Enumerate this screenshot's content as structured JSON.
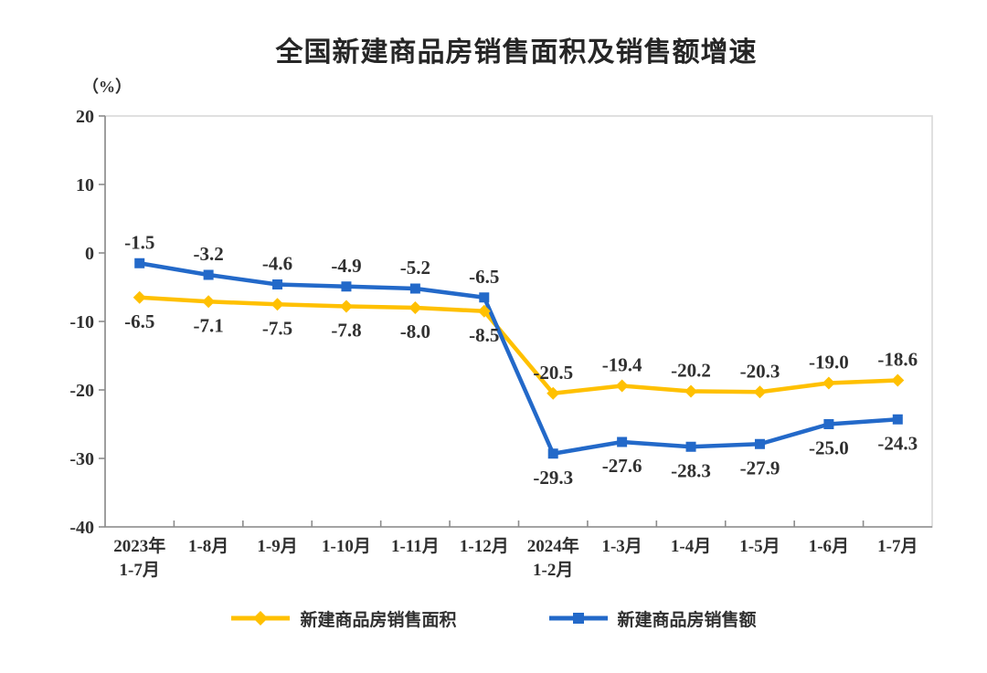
{
  "chart_data": {
    "type": "line",
    "title": "全国新建商品房销售面积及销售额增速",
    "unit_label": "（%）",
    "categories": [
      "2023年\n1-7月",
      "1-8月",
      "1-9月",
      "1-10月",
      "1-11月",
      "1-12月",
      "2024年\n1-2月",
      "1-3月",
      "1-4月",
      "1-5月",
      "1-6月",
      "1-7月"
    ],
    "series": [
      {
        "name": "新建商品房销售面积",
        "marker": "diamond",
        "color": "#FFC000",
        "values": [
          -6.5,
          -7.1,
          -7.5,
          -7.8,
          -8.0,
          -8.5,
          -20.5,
          -19.4,
          -20.2,
          -20.3,
          -19.0,
          -18.6
        ]
      },
      {
        "name": "新建商品房销售额",
        "marker": "square",
        "color": "#2369C9",
        "values": [
          -1.5,
          -3.2,
          -4.6,
          -4.9,
          -5.2,
          -6.5,
          -29.3,
          -27.6,
          -28.3,
          -27.9,
          -25.0,
          -24.3
        ]
      }
    ],
    "ylim": [
      -40,
      20
    ],
    "ystep": 10,
    "grid": false,
    "legend_position": "bottom",
    "colors": {
      "axis": "#8c8c8c",
      "border": "#d9d9d9",
      "text": "#303030"
    }
  }
}
